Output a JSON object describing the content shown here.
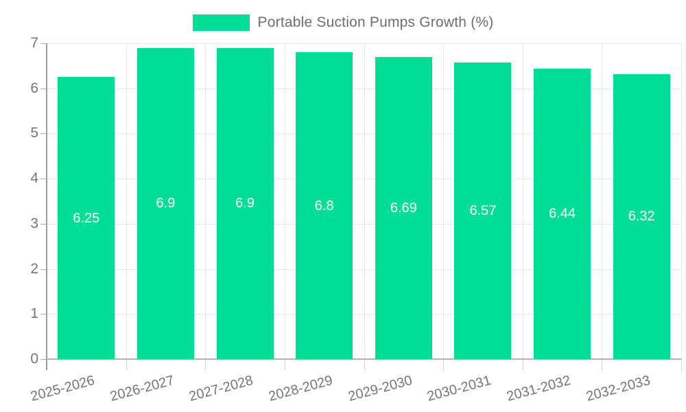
{
  "legend": {
    "label": "Portable Suction Pumps Growth (%)",
    "swatch_color": "#00DE95"
  },
  "chart_data": {
    "type": "bar",
    "title": "Portable Suction Pumps Growth (%)",
    "categories": [
      "2025-2026",
      "2026-2027",
      "2027-2028",
      "2028-2029",
      "2029-2030",
      "2030-2031",
      "2031-2032",
      "2032-2033"
    ],
    "values": [
      6.25,
      6.9,
      6.9,
      6.8,
      6.69,
      6.57,
      6.44,
      6.32
    ],
    "xlabel": "",
    "ylabel": "",
    "ylim": [
      0,
      7
    ],
    "yticks": [
      0,
      1,
      2,
      3,
      4,
      5,
      6,
      7
    ],
    "grid": true,
    "legend_position": "top",
    "bar_color": "#00DE95",
    "value_label_color": "#ffffff",
    "axis_text_color": "#757575",
    "gridline_color": "#e7e7e7",
    "background_color": "#ffffff"
  }
}
